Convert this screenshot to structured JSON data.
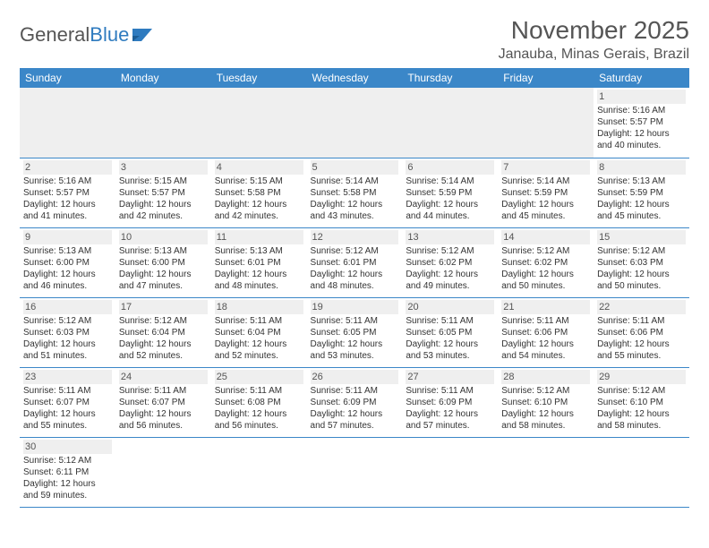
{
  "logo": {
    "word1": "General",
    "word2": "Blue"
  },
  "title": "November 2025",
  "location": "Janauba, Minas Gerais, Brazil",
  "colors": {
    "header_bg": "#3b87c8",
    "header_text": "#ffffff",
    "border": "#3b87c8",
    "text": "#333333",
    "muted": "#555555",
    "empty_bg": "#efefef"
  },
  "weekdays": [
    "Sunday",
    "Monday",
    "Tuesday",
    "Wednesday",
    "Thursday",
    "Friday",
    "Saturday"
  ],
  "weeks": [
    [
      null,
      null,
      null,
      null,
      null,
      null,
      {
        "n": "1",
        "sr": "Sunrise: 5:16 AM",
        "ss": "Sunset: 5:57 PM",
        "d1": "Daylight: 12 hours",
        "d2": "and 40 minutes."
      }
    ],
    [
      {
        "n": "2",
        "sr": "Sunrise: 5:16 AM",
        "ss": "Sunset: 5:57 PM",
        "d1": "Daylight: 12 hours",
        "d2": "and 41 minutes."
      },
      {
        "n": "3",
        "sr": "Sunrise: 5:15 AM",
        "ss": "Sunset: 5:57 PM",
        "d1": "Daylight: 12 hours",
        "d2": "and 42 minutes."
      },
      {
        "n": "4",
        "sr": "Sunrise: 5:15 AM",
        "ss": "Sunset: 5:58 PM",
        "d1": "Daylight: 12 hours",
        "d2": "and 42 minutes."
      },
      {
        "n": "5",
        "sr": "Sunrise: 5:14 AM",
        "ss": "Sunset: 5:58 PM",
        "d1": "Daylight: 12 hours",
        "d2": "and 43 minutes."
      },
      {
        "n": "6",
        "sr": "Sunrise: 5:14 AM",
        "ss": "Sunset: 5:59 PM",
        "d1": "Daylight: 12 hours",
        "d2": "and 44 minutes."
      },
      {
        "n": "7",
        "sr": "Sunrise: 5:14 AM",
        "ss": "Sunset: 5:59 PM",
        "d1": "Daylight: 12 hours",
        "d2": "and 45 minutes."
      },
      {
        "n": "8",
        "sr": "Sunrise: 5:13 AM",
        "ss": "Sunset: 5:59 PM",
        "d1": "Daylight: 12 hours",
        "d2": "and 45 minutes."
      }
    ],
    [
      {
        "n": "9",
        "sr": "Sunrise: 5:13 AM",
        "ss": "Sunset: 6:00 PM",
        "d1": "Daylight: 12 hours",
        "d2": "and 46 minutes."
      },
      {
        "n": "10",
        "sr": "Sunrise: 5:13 AM",
        "ss": "Sunset: 6:00 PM",
        "d1": "Daylight: 12 hours",
        "d2": "and 47 minutes."
      },
      {
        "n": "11",
        "sr": "Sunrise: 5:13 AM",
        "ss": "Sunset: 6:01 PM",
        "d1": "Daylight: 12 hours",
        "d2": "and 48 minutes."
      },
      {
        "n": "12",
        "sr": "Sunrise: 5:12 AM",
        "ss": "Sunset: 6:01 PM",
        "d1": "Daylight: 12 hours",
        "d2": "and 48 minutes."
      },
      {
        "n": "13",
        "sr": "Sunrise: 5:12 AM",
        "ss": "Sunset: 6:02 PM",
        "d1": "Daylight: 12 hours",
        "d2": "and 49 minutes."
      },
      {
        "n": "14",
        "sr": "Sunrise: 5:12 AM",
        "ss": "Sunset: 6:02 PM",
        "d1": "Daylight: 12 hours",
        "d2": "and 50 minutes."
      },
      {
        "n": "15",
        "sr": "Sunrise: 5:12 AM",
        "ss": "Sunset: 6:03 PM",
        "d1": "Daylight: 12 hours",
        "d2": "and 50 minutes."
      }
    ],
    [
      {
        "n": "16",
        "sr": "Sunrise: 5:12 AM",
        "ss": "Sunset: 6:03 PM",
        "d1": "Daylight: 12 hours",
        "d2": "and 51 minutes."
      },
      {
        "n": "17",
        "sr": "Sunrise: 5:12 AM",
        "ss": "Sunset: 6:04 PM",
        "d1": "Daylight: 12 hours",
        "d2": "and 52 minutes."
      },
      {
        "n": "18",
        "sr": "Sunrise: 5:11 AM",
        "ss": "Sunset: 6:04 PM",
        "d1": "Daylight: 12 hours",
        "d2": "and 52 minutes."
      },
      {
        "n": "19",
        "sr": "Sunrise: 5:11 AM",
        "ss": "Sunset: 6:05 PM",
        "d1": "Daylight: 12 hours",
        "d2": "and 53 minutes."
      },
      {
        "n": "20",
        "sr": "Sunrise: 5:11 AM",
        "ss": "Sunset: 6:05 PM",
        "d1": "Daylight: 12 hours",
        "d2": "and 53 minutes."
      },
      {
        "n": "21",
        "sr": "Sunrise: 5:11 AM",
        "ss": "Sunset: 6:06 PM",
        "d1": "Daylight: 12 hours",
        "d2": "and 54 minutes."
      },
      {
        "n": "22",
        "sr": "Sunrise: 5:11 AM",
        "ss": "Sunset: 6:06 PM",
        "d1": "Daylight: 12 hours",
        "d2": "and 55 minutes."
      }
    ],
    [
      {
        "n": "23",
        "sr": "Sunrise: 5:11 AM",
        "ss": "Sunset: 6:07 PM",
        "d1": "Daylight: 12 hours",
        "d2": "and 55 minutes."
      },
      {
        "n": "24",
        "sr": "Sunrise: 5:11 AM",
        "ss": "Sunset: 6:07 PM",
        "d1": "Daylight: 12 hours",
        "d2": "and 56 minutes."
      },
      {
        "n": "25",
        "sr": "Sunrise: 5:11 AM",
        "ss": "Sunset: 6:08 PM",
        "d1": "Daylight: 12 hours",
        "d2": "and 56 minutes."
      },
      {
        "n": "26",
        "sr": "Sunrise: 5:11 AM",
        "ss": "Sunset: 6:09 PM",
        "d1": "Daylight: 12 hours",
        "d2": "and 57 minutes."
      },
      {
        "n": "27",
        "sr": "Sunrise: 5:11 AM",
        "ss": "Sunset: 6:09 PM",
        "d1": "Daylight: 12 hours",
        "d2": "and 57 minutes."
      },
      {
        "n": "28",
        "sr": "Sunrise: 5:12 AM",
        "ss": "Sunset: 6:10 PM",
        "d1": "Daylight: 12 hours",
        "d2": "and 58 minutes."
      },
      {
        "n": "29",
        "sr": "Sunrise: 5:12 AM",
        "ss": "Sunset: 6:10 PM",
        "d1": "Daylight: 12 hours",
        "d2": "and 58 minutes."
      }
    ],
    [
      {
        "n": "30",
        "sr": "Sunrise: 5:12 AM",
        "ss": "Sunset: 6:11 PM",
        "d1": "Daylight: 12 hours",
        "d2": "and 59 minutes."
      },
      null,
      null,
      null,
      null,
      null,
      null
    ]
  ]
}
